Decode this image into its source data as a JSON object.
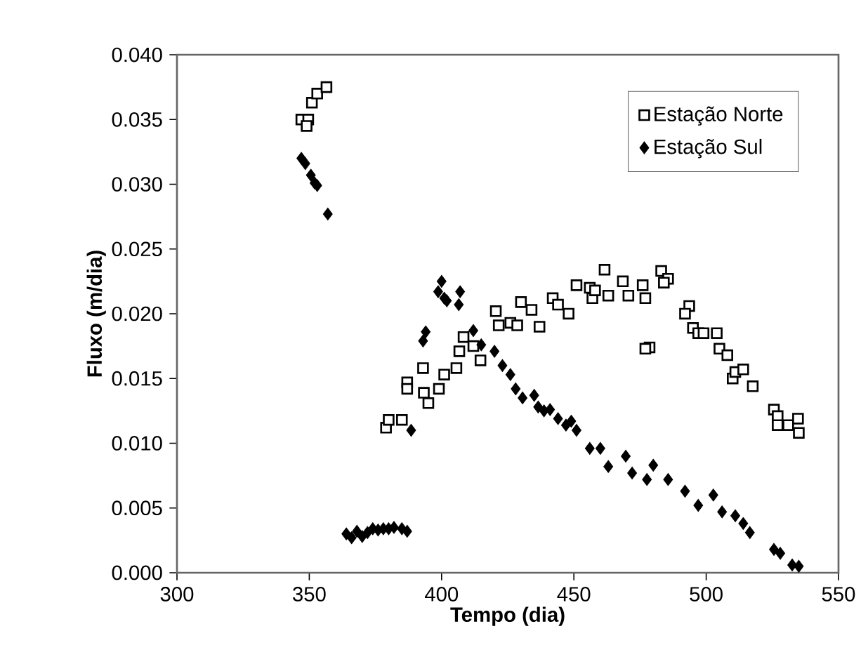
{
  "chart_data": {
    "type": "scatter",
    "xlabel": "Tempo (dia)",
    "ylabel": "Fluxo (m/dia)",
    "xlim": [
      300,
      550
    ],
    "xticks": [
      300,
      350,
      400,
      450,
      500,
      550
    ],
    "ylim": [
      0,
      0.04
    ],
    "yticks": [
      {
        "value": 0,
        "label": "0.000"
      },
      0.005,
      {
        "value": 0.01,
        "label": "0.010"
      },
      0.015,
      {
        "value": 0.02,
        "label": "0.020"
      },
      0.025,
      {
        "value": 0.03,
        "label": "0.030"
      },
      0.035,
      {
        "value": 0.04,
        "label": "0.040"
      }
    ],
    "grid": false,
    "legend": "top right",
    "series": [
      {
        "name": "Estação Norte",
        "color": "#000000",
        "marker": "square",
        "x": [
          347,
          349.6,
          349,
          351,
          353,
          356.5,
          379,
          380,
          385,
          387,
          387,
          393,
          393.3,
          395,
          399,
          401,
          405.6,
          406.7,
          408.3,
          412,
          414.7,
          420.5,
          421.6,
          426,
          430,
          428.6,
          437,
          434,
          442,
          444,
          448,
          451,
          456,
          461.6,
          457,
          458,
          463,
          468.5,
          470.6,
          476,
          477,
          478.6,
          477,
          483,
          485.6,
          484,
          493.6,
          492,
          495,
          497,
          499,
          504,
          505,
          508,
          510,
          511,
          514,
          517.6,
          525.6,
          527,
          527,
          531,
          534.7,
          535
        ],
        "values": [
          0.035,
          0.035,
          0.0345,
          0.0363,
          0.037,
          0.0375,
          0.0112,
          0.0118,
          0.0118,
          0.0147,
          0.0142,
          0.0158,
          0.0139,
          0.0131,
          0.0142,
          0.0153,
          0.0158,
          0.0171,
          0.0182,
          0.0175,
          0.0164,
          0.0202,
          0.0191,
          0.0193,
          0.0209,
          0.0191,
          0.019,
          0.0203,
          0.0212,
          0.0207,
          0.02,
          0.0222,
          0.022,
          0.0234,
          0.0212,
          0.0218,
          0.0214,
          0.0225,
          0.0214,
          0.0222,
          0.0212,
          0.0174,
          0.0173,
          0.0233,
          0.0227,
          0.0224,
          0.0206,
          0.02,
          0.0189,
          0.0185,
          0.0185,
          0.0185,
          0.0173,
          0.0168,
          0.015,
          0.0155,
          0.0157,
          0.0144,
          0.0126,
          0.0121,
          0.0114,
          0.0114,
          0.0119,
          0.0108
        ]
      },
      {
        "name": "Estação Sul",
        "color": "#000000",
        "marker": "diamond",
        "x": [
          347,
          348.5,
          350.6,
          352,
          353,
          357,
          364,
          366,
          368,
          370,
          372,
          374,
          376,
          378,
          380,
          382,
          385,
          387,
          388.5,
          393,
          394,
          398.7,
          400,
          401,
          402,
          406.5,
          407,
          412,
          415,
          420,
          423,
          426,
          428,
          430.6,
          435,
          436.5,
          438.7,
          441,
          444,
          447,
          449,
          451,
          456,
          460,
          463,
          469.6,
          472,
          477.6,
          480,
          485.6,
          492,
          497,
          502.7,
          506,
          511,
          514,
          516.5,
          525.6,
          528,
          532.5,
          535
        ],
        "values": [
          0.032,
          0.0316,
          0.0307,
          0.0301,
          0.0299,
          0.0277,
          0.003,
          0.0027,
          0.0032,
          0.0028,
          0.0031,
          0.0034,
          0.0033,
          0.0034,
          0.0034,
          0.0035,
          0.0034,
          0.0032,
          0.011,
          0.0179,
          0.0186,
          0.0217,
          0.0225,
          0.0212,
          0.021,
          0.0207,
          0.0217,
          0.0187,
          0.0176,
          0.0171,
          0.016,
          0.0153,
          0.0142,
          0.0135,
          0.0137,
          0.0128,
          0.0125,
          0.0126,
          0.0119,
          0.0114,
          0.0117,
          0.011,
          0.0096,
          0.0096,
          0.0082,
          0.009,
          0.0077,
          0.0072,
          0.0083,
          0.0072,
          0.0063,
          0.0052,
          0.006,
          0.0047,
          0.0044,
          0.0038,
          0.0031,
          0.0018,
          0.0015,
          0.0006,
          0.0005
        ]
      }
    ]
  }
}
